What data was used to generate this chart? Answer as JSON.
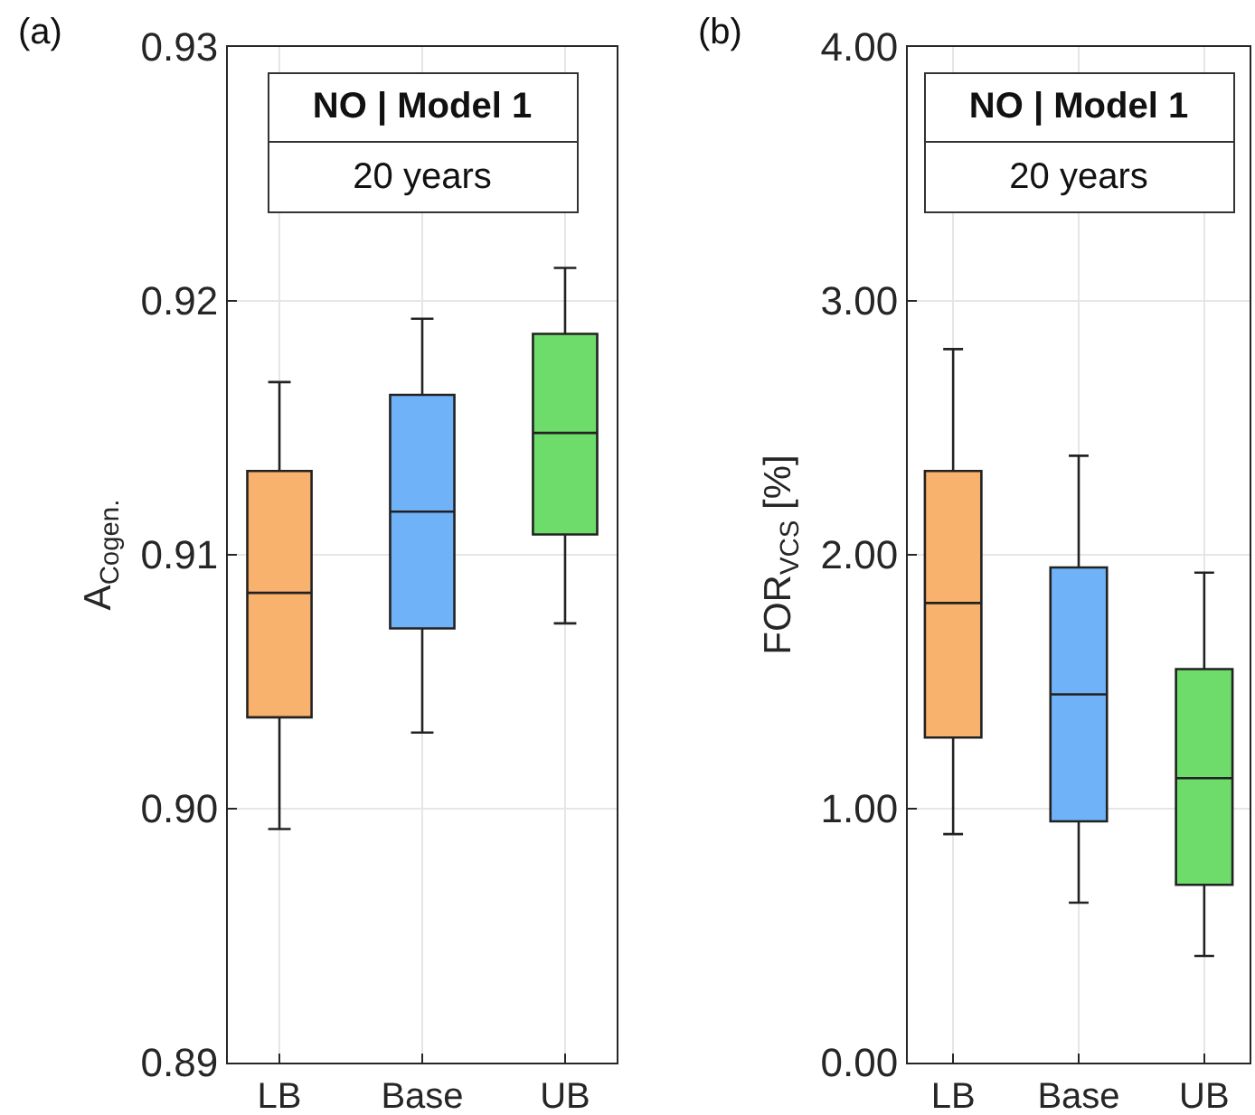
{
  "chart_data": [
    {
      "type": "box",
      "categories": [
        "LB",
        "Base",
        "UB"
      ],
      "colors": [
        "#f9b16e",
        "#6fb2f7",
        "#6ddc6a"
      ],
      "boxes": [
        {
          "low": 0.8992,
          "q1": 0.9036,
          "median": 0.9085,
          "q3": 0.9133,
          "high": 0.9168
        },
        {
          "low": 0.903,
          "q1": 0.9071,
          "median": 0.9117,
          "q3": 0.9163,
          "high": 0.9193
        },
        {
          "low": 0.9073,
          "q1": 0.9108,
          "median": 0.9148,
          "q3": 0.9187,
          "high": 0.9213
        }
      ],
      "ylabel": "A$_{Cogen.}$",
      "ylim": [
        0.89,
        0.93
      ],
      "yticks": [
        {
          "value": 0.89,
          "label": "0.89"
        },
        {
          "value": 0.9,
          "label": "0.90"
        },
        {
          "value": 0.91,
          "label": "0.91"
        },
        {
          "value": 0.92,
          "label": "0.92"
        },
        {
          "value": 0.93,
          "label": "0.93"
        }
      ],
      "grid": true,
      "annotations": [
        "(a)",
        "NO | Model 1",
        "20 years"
      ]
    },
    {
      "type": "box",
      "categories": [
        "LB",
        "Base",
        "UB"
      ],
      "colors": [
        "#f9b16e",
        "#6fb2f7",
        "#6ddc6a"
      ],
      "boxes": [
        {
          "low": 0.9,
          "q1": 1.28,
          "median": 1.81,
          "q3": 2.33,
          "high": 2.81
        },
        {
          "low": 0.63,
          "q1": 0.95,
          "median": 1.45,
          "q3": 1.95,
          "high": 2.39
        },
        {
          "low": 0.42,
          "q1": 0.7,
          "median": 1.12,
          "q3": 1.55,
          "high": 1.93
        }
      ],
      "ylabel": "FOR$_{VCS}$ [%]",
      "ylim": [
        0,
        4
      ],
      "yticks": [
        {
          "value": 0,
          "label": "0.00"
        },
        {
          "value": 1,
          "label": "1.00"
        },
        {
          "value": 2,
          "label": "2.00"
        },
        {
          "value": 3,
          "label": "3.00"
        },
        {
          "value": 4,
          "label": "4.00"
        }
      ],
      "grid": true,
      "annotations": [
        "(b)",
        "NO | Model 1",
        "20 years"
      ]
    }
  ]
}
